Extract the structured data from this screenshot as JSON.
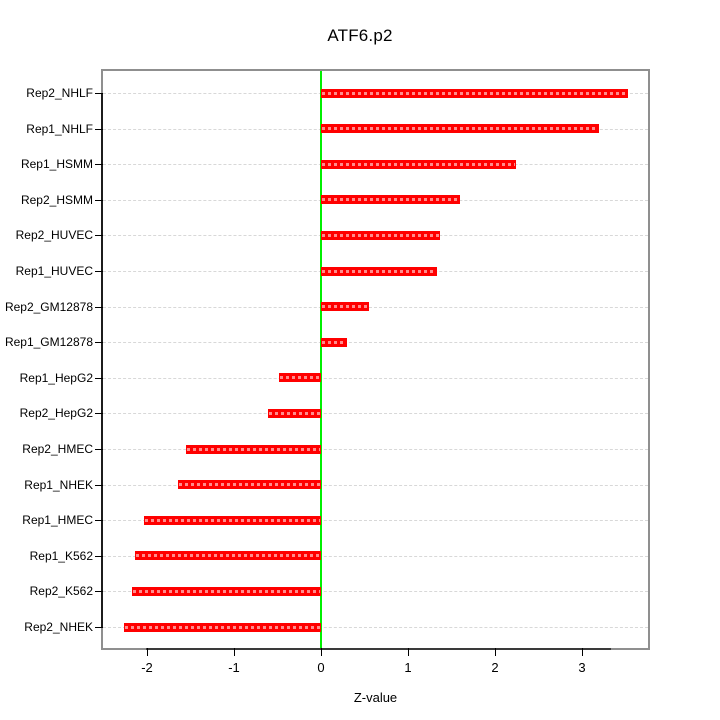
{
  "title": "ATF6.p2",
  "x_axis_label": "Z-value",
  "colors": {
    "bar": "#ff0000",
    "zero_line": "#00f000",
    "grid": "#d8d8d8",
    "box_border": "#8f8f8f",
    "text": "#000000"
  },
  "chart_data": {
    "type": "bar",
    "orientation": "horizontal",
    "title": "ATF6.p2",
    "xlabel": "Z-value",
    "ylabel": "",
    "categories_top_to_bottom": [
      "Rep2_NHLF",
      "Rep1_NHLF",
      "Rep1_HSMM",
      "Rep2_HSMM",
      "Rep2_HUVEC",
      "Rep1_HUVEC",
      "Rep2_GM12878",
      "Rep1_GM12878",
      "Rep1_HepG2",
      "Rep2_HepG2",
      "Rep2_HMEC",
      "Rep1_NHEK",
      "Rep1_HMEC",
      "Rep1_K562",
      "Rep2_K562",
      "Rep2_NHEK"
    ],
    "values": [
      3.53,
      3.2,
      2.24,
      1.6,
      1.37,
      1.33,
      0.55,
      0.3,
      -0.48,
      -0.61,
      -1.55,
      -1.64,
      -2.03,
      -2.14,
      -2.17,
      -2.27
    ],
    "x_ticks": [
      -2,
      -1,
      0,
      1,
      2,
      3
    ],
    "xlim": [
      -2.5,
      3.76
    ],
    "grid": "horizontal-dotted",
    "zero_reference_line": 0,
    "legend": "none"
  }
}
